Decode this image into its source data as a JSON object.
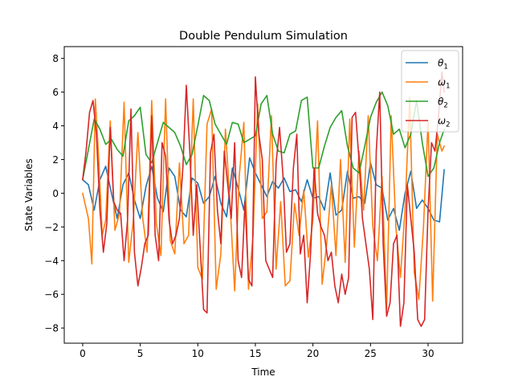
{
  "chart_data": {
    "type": "line",
    "title": "Double Pendulum Simulation",
    "xlabel": "Time",
    "ylabel": "State Variables",
    "xlim": [
      -1.6,
      33.0
    ],
    "ylim": [
      -8.9,
      8.7
    ],
    "xticks": [
      0,
      5,
      10,
      15,
      20,
      25,
      30
    ],
    "yticks": [
      -8,
      -6,
      -4,
      -2,
      0,
      2,
      4,
      6,
      8
    ],
    "grid": false,
    "legend_position": "top-right",
    "series": [
      {
        "name": "θ1",
        "label_base": "θ",
        "label_sub": "1",
        "color": "#1f77b4",
        "x": [
          0,
          0.5,
          1,
          1.5,
          2,
          2.5,
          3,
          3.5,
          4,
          4.5,
          5,
          5.5,
          6,
          6.5,
          7,
          7.5,
          8,
          8.5,
          9,
          9.5,
          10,
          10.5,
          11,
          11.5,
          12,
          12.5,
          13,
          13.5,
          14,
          14.5,
          15,
          15.5,
          16,
          16.5,
          17,
          17.5,
          18,
          18.5,
          19,
          19.5,
          20,
          20.5,
          21,
          21.5,
          22,
          22.5,
          23,
          23.5,
          24,
          24.5,
          25,
          25.5,
          26,
          26.5,
          27,
          27.5,
          28,
          28.5,
          29,
          29.5,
          30,
          30.5,
          31,
          31.4
        ],
        "values": [
          0.8,
          0.5,
          -1.0,
          0.8,
          1.6,
          0.0,
          -1.5,
          0.5,
          1.2,
          -0.4,
          -1.5,
          0.4,
          1.6,
          -0.3,
          -1.1,
          1.5,
          1.0,
          -1.0,
          -1.4,
          0.9,
          0.6,
          -0.6,
          -0.2,
          1.0,
          -0.6,
          -1.4,
          1.5,
          0.3,
          -1.0,
          2.1,
          1.2,
          0.5,
          -0.2,
          0.7,
          0.3,
          0.9,
          0.1,
          0.2,
          -0.5,
          0.8,
          -0.3,
          -0.2,
          -1.0,
          1.2,
          -1.3,
          -1.0,
          1.3,
          -0.3,
          -0.2,
          -0.6,
          1.8,
          0.5,
          0.3,
          -1.6,
          -0.9,
          -2.2,
          0.0,
          1.3,
          -0.9,
          -0.4,
          -0.9,
          -1.6,
          -1.7,
          1.4
        ]
      },
      {
        "name": "ω1",
        "label_base": "ω",
        "label_sub": "1",
        "color": "#ff7f0e",
        "x": [
          0,
          0.5,
          0.8,
          1.1,
          1.4,
          1.7,
          2,
          2.4,
          2.8,
          3.2,
          3.6,
          4,
          4.4,
          4.8,
          5.2,
          5.6,
          6,
          6.4,
          6.8,
          7.2,
          7.6,
          8,
          8.4,
          8.8,
          9.2,
          9.6,
          10,
          10.4,
          10.8,
          11.2,
          11.6,
          12,
          12.4,
          12.8,
          13.2,
          13.6,
          14,
          14.4,
          14.8,
          15.2,
          15.6,
          16,
          16.4,
          16.8,
          17.2,
          17.6,
          18,
          18.4,
          18.8,
          19.2,
          19.6,
          20,
          20.4,
          20.8,
          21.2,
          21.6,
          22,
          22.4,
          22.8,
          23.2,
          23.6,
          24,
          24.4,
          24.8,
          25.2,
          25.6,
          26,
          26.4,
          26.8,
          27.2,
          27.6,
          28,
          28.4,
          28.8,
          29.2,
          29.6,
          30,
          30.4,
          30.8,
          31.2,
          31.4
        ],
        "values": [
          0.0,
          -1.5,
          -4.2,
          5.6,
          2.0,
          -2.5,
          -1.6,
          4.3,
          -2.2,
          -1.2,
          5.4,
          -4.1,
          -1.6,
          3.6,
          -1.4,
          -3.5,
          5.5,
          -1.8,
          -3.7,
          5.6,
          -2.8,
          -3.6,
          1.8,
          -3.0,
          -2.5,
          5.6,
          -4.4,
          -5.1,
          4.1,
          5.0,
          -5.7,
          -3.6,
          3.8,
          -0.6,
          -5.8,
          1.0,
          4.2,
          -5.7,
          -2.5,
          5.3,
          -1.5,
          -1.1,
          4.6,
          -4.5,
          -0.5,
          -5.5,
          -5.2,
          -0.6,
          -2.5,
          0.2,
          -3.8,
          -1.6,
          4.3,
          -5.4,
          -3.0,
          0.5,
          -3.7,
          2.0,
          -4.1,
          4.4,
          -3.2,
          2.5,
          -1.0,
          4.6,
          -2.0,
          -4.0,
          1.0,
          -6.9,
          4.6,
          -2.0,
          -5.0,
          -1.0,
          5.7,
          -4.7,
          -6.3,
          -2.0,
          4.3,
          -6.4,
          3.5,
          2.5,
          2.8
        ]
      },
      {
        "name": "θ2",
        "label_base": "θ",
        "label_sub": "2",
        "color": "#2ca02c",
        "x": [
          0,
          0.5,
          1,
          1.5,
          2,
          2.5,
          3,
          3.5,
          4,
          4.5,
          5,
          5.5,
          6,
          6.5,
          7,
          7.5,
          8,
          8.5,
          9,
          9.5,
          10,
          10.5,
          11,
          11.5,
          12,
          12.5,
          13,
          13.5,
          14,
          14.5,
          15,
          15.5,
          16,
          16.5,
          17,
          17.5,
          18,
          18.5,
          19,
          19.5,
          20,
          20.5,
          21,
          21.5,
          22,
          22.5,
          23,
          23.5,
          24,
          24.5,
          25,
          25.5,
          26,
          26.5,
          27,
          27.5,
          28,
          28.5,
          29,
          29.5,
          30,
          30.5,
          31,
          31.4
        ],
        "values": [
          0.8,
          2.6,
          4.4,
          3.8,
          2.9,
          3.2,
          2.6,
          2.2,
          4.3,
          4.6,
          5.1,
          2.3,
          1.8,
          3.0,
          4.2,
          3.9,
          3.6,
          2.8,
          1.7,
          2.3,
          4.0,
          5.8,
          5.5,
          4.1,
          3.5,
          2.9,
          4.2,
          4.1,
          3.0,
          3.2,
          3.4,
          5.3,
          5.8,
          3.5,
          2.5,
          2.4,
          3.5,
          3.7,
          5.5,
          5.7,
          1.5,
          1.5,
          2.8,
          3.9,
          4.5,
          4.9,
          2.8,
          1.5,
          1.2,
          2.8,
          4.5,
          5.4,
          6.0,
          5.2,
          3.5,
          3.8,
          2.7,
          3.5,
          5.5,
          3.0,
          1.0,
          1.5,
          3.0,
          3.8
        ]
      },
      {
        "name": "ω2",
        "label_base": "ω",
        "label_sub": "2",
        "color": "#d62728",
        "x": [
          0,
          0.3,
          0.6,
          0.9,
          1.2,
          1.5,
          1.8,
          2.1,
          2.4,
          2.7,
          3,
          3.3,
          3.6,
          3.9,
          4.2,
          4.5,
          4.8,
          5.1,
          5.4,
          5.7,
          6,
          6.3,
          6.6,
          6.9,
          7.2,
          7.5,
          7.8,
          8.1,
          8.4,
          8.7,
          9,
          9.3,
          9.6,
          9.9,
          10.2,
          10.5,
          10.8,
          11.1,
          11.4,
          11.7,
          12,
          12.3,
          12.6,
          12.9,
          13.2,
          13.5,
          13.8,
          14.1,
          14.4,
          14.7,
          15,
          15.3,
          15.6,
          15.9,
          16.2,
          16.5,
          16.8,
          17.1,
          17.4,
          17.7,
          18,
          18.3,
          18.6,
          18.9,
          19.2,
          19.5,
          19.8,
          20.1,
          20.4,
          20.7,
          21,
          21.3,
          21.6,
          21.9,
          22.2,
          22.5,
          22.8,
          23.1,
          23.4,
          23.7,
          24,
          24.3,
          24.6,
          24.9,
          25.2,
          25.5,
          25.8,
          26.1,
          26.4,
          26.7,
          27,
          27.3,
          27.6,
          27.9,
          28.2,
          28.5,
          28.8,
          29.1,
          29.4,
          29.7,
          30,
          30.3,
          30.6,
          30.9,
          31.2,
          31.4
        ],
        "values": [
          0.8,
          2.5,
          4.8,
          5.5,
          3.5,
          -1.0,
          -3.5,
          -1.8,
          3.9,
          -0.5,
          -1.0,
          -1.2,
          -4.0,
          -1.6,
          5.0,
          -3.5,
          -5.5,
          -4.4,
          -3.0,
          -2.5,
          4.6,
          -2.5,
          -4.0,
          3.0,
          2.2,
          -1.6,
          -3.0,
          -2.5,
          -1.5,
          1.5,
          6.4,
          2.5,
          -2.5,
          0.5,
          -3.2,
          -6.9,
          -7.1,
          2.4,
          3.5,
          -1.0,
          -3.0,
          2.5,
          0.5,
          -1.5,
          3.0,
          -4.0,
          -5.0,
          -0.5,
          -5.1,
          -5.5,
          6.9,
          3.5,
          2.0,
          -4.0,
          -4.5,
          -5.0,
          1.8,
          3.9,
          1.0,
          -3.5,
          -3.0,
          1.5,
          3.5,
          -3.6,
          -2.5,
          -6.5,
          -3.5,
          1.5,
          -1.2,
          -2.0,
          -2.5,
          -4.0,
          -3.5,
          -5.5,
          -6.5,
          -4.8,
          -6.0,
          -5.0,
          4.5,
          4.8,
          2.0,
          -1.5,
          -3.0,
          -4.5,
          -7.5,
          2.5,
          6.0,
          -3.0,
          -7.3,
          -6.5,
          -3.0,
          -2.5,
          -7.9,
          -6.5,
          0.5,
          -1.5,
          -3.5,
          -7.5,
          -7.9,
          -7.5,
          -1.0,
          3.0,
          2.5,
          4.5,
          7.2,
          6.0
        ]
      }
    ]
  }
}
